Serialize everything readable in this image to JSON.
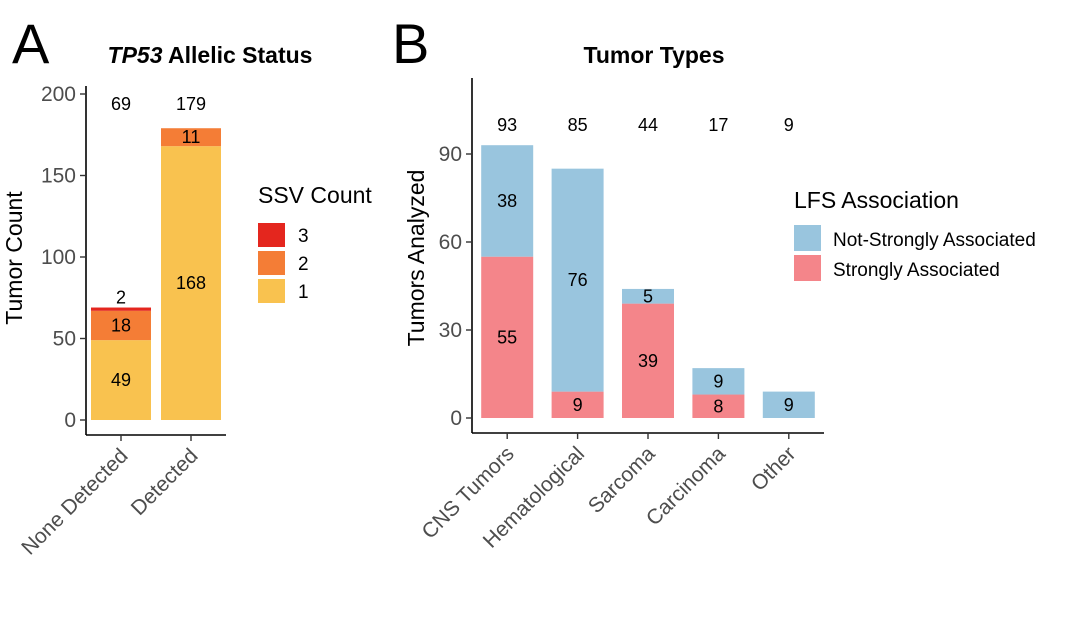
{
  "chart_data": [
    {
      "panel": "A",
      "type": "bar",
      "stacked": true,
      "title_italic": "TP53",
      "title_rest": " Allelic Status",
      "xlabel": "",
      "ylabel": "Tumor Count",
      "ylim": [
        0,
        200
      ],
      "yticks": [
        0,
        50,
        100,
        150,
        200
      ],
      "categories": [
        "None Detected",
        "Detected"
      ],
      "series": [
        {
          "name": "1",
          "color": "#F9C24F",
          "values": [
            49,
            168
          ]
        },
        {
          "name": "2",
          "color": "#F47D36",
          "values": [
            18,
            11
          ]
        },
        {
          "name": "3",
          "color": "#E4261E",
          "values": [
            2,
            0
          ]
        }
      ],
      "series_labels": [
        {
          "name": "1",
          "labels": [
            "49",
            "168"
          ]
        },
        {
          "name": "2",
          "labels": [
            "18",
            "11"
          ]
        },
        {
          "name": "3",
          "labels": [
            "2",
            ""
          ]
        }
      ],
      "totals": [
        "69",
        "179"
      ],
      "legend": {
        "title": "SSV Count",
        "entries": [
          {
            "label": "3",
            "color": "#E4261E"
          },
          {
            "label": "2",
            "color": "#F47D36"
          },
          {
            "label": "1",
            "color": "#F9C24F"
          }
        ]
      }
    },
    {
      "panel": "B",
      "type": "bar",
      "stacked": true,
      "title": "Tumor Types",
      "xlabel": "",
      "ylabel": "Tumors Analyzed",
      "ylim": [
        0,
        105
      ],
      "yticks": [
        0,
        30,
        60,
        90
      ],
      "categories": [
        "CNS Tumors",
        "Hematological",
        "Sarcoma",
        "Carcinoma",
        "Other"
      ],
      "series": [
        {
          "name": "Strongly Associated",
          "color": "#F4858A",
          "values": [
            55,
            9,
            39,
            8,
            0
          ]
        },
        {
          "name": "Not-Strongly Associated",
          "color": "#99C5DE",
          "values": [
            38,
            76,
            5,
            9,
            9
          ]
        }
      ],
      "series_labels": [
        {
          "name": "Strongly Associated",
          "labels": [
            "55",
            "9",
            "39",
            "8",
            ""
          ]
        },
        {
          "name": "Not-Strongly Associated",
          "labels": [
            "38",
            "76",
            "5",
            "9",
            "9"
          ]
        }
      ],
      "totals": [
        "93",
        "85",
        "44",
        "17",
        "9"
      ],
      "legend": {
        "title": "LFS Association",
        "entries": [
          {
            "label": "Not-Strongly Associated",
            "color": "#99C5DE"
          },
          {
            "label": "Strongly Associated",
            "color": "#F4858A"
          }
        ]
      }
    }
  ],
  "panel_letters": {
    "a": "A",
    "b": "B"
  }
}
